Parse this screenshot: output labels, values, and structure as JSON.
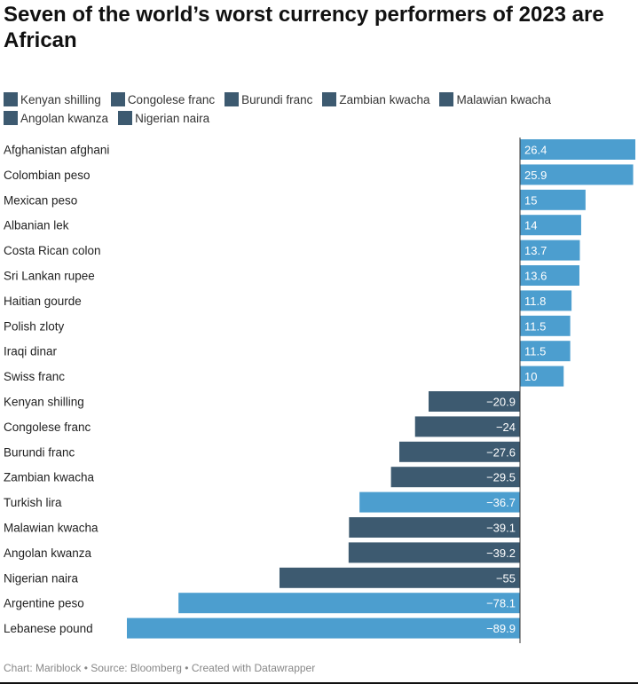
{
  "title": "Seven of the world’s worst currency performers of 2023 are African",
  "subtitle": "",
  "legend": [
    {
      "label": "Kenyan shilling",
      "color": "#3d5a70"
    },
    {
      "label": "Congolese franc",
      "color": "#3d5a70"
    },
    {
      "label": "Burundi franc",
      "color": "#3d5a70"
    },
    {
      "label": "Zambian kwacha",
      "color": "#3d5a70"
    },
    {
      "label": "Malawian kwacha",
      "color": "#3d5a70"
    },
    {
      "label": "Angolan kwanza",
      "color": "#3d5a70"
    },
    {
      "label": "Nigerian naira",
      "color": "#3d5a70"
    }
  ],
  "footer": "Chart: Mariblock • Source: Bloomberg • Created with Datawrapper",
  "colors": {
    "default_bar": "#4c9ecf",
    "african_bar": "#3d5a70",
    "value_label": "#ffffff"
  },
  "chart_data": {
    "type": "bar",
    "orientation": "horizontal",
    "categories": [
      "Afghanistan afghani",
      "Colombian peso",
      "Mexican peso",
      "Albanian lek",
      "Costa Rican colon",
      "Sri Lankan rupee",
      "Haitian gourde",
      "Polish zloty",
      "Iraqi dinar",
      "Swiss franc",
      "Kenyan shilling",
      "Congolese franc",
      "Burundi franc",
      "Zambian kwacha",
      "Turkish lira",
      "Malawian kwacha",
      "Angolan kwanza",
      "Nigerian naira",
      "Argentine peso",
      "Lebanese pound"
    ],
    "values": [
      26.4,
      25.9,
      15,
      14,
      13.7,
      13.6,
      11.8,
      11.5,
      11.5,
      10,
      -20.9,
      -24,
      -27.6,
      -29.5,
      -36.7,
      -39.1,
      -39.2,
      -55,
      -78.1,
      -89.9
    ],
    "value_labels": [
      "26.4",
      "25.9",
      "15",
      "14",
      "13.7",
      "13.6",
      "11.8",
      "11.5",
      "11.5",
      "10",
      "−20.9",
      "−24",
      "−27.6",
      "−29.5",
      "−36.7",
      "−39.1",
      "−39.2",
      "−55",
      "−78.1",
      "−89.9"
    ],
    "highlighted": [
      "Kenyan shilling",
      "Congolese franc",
      "Burundi franc",
      "Zambian kwacha",
      "Malawian kwacha",
      "Angolan kwanza",
      "Nigerian naira"
    ],
    "xlim": [
      -89.9,
      26.4
    ],
    "grid": false
  }
}
